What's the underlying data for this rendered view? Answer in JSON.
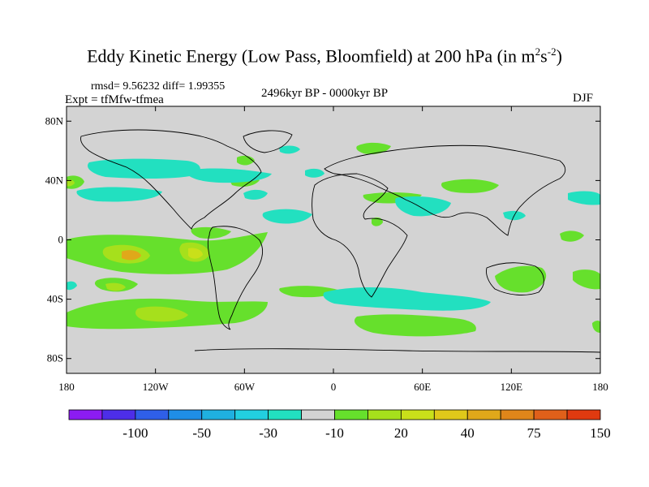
{
  "title": {
    "text": "Eddy Kinetic Energy (Low Pass, Bloomfield) at 200 hPa (in m",
    "sup1": "2",
    "mid": "s",
    "sup2": "-2",
    "end": ")"
  },
  "stats": "rmsd= 9.56232 diff= 1.99355",
  "expt": "Expt = tfMfw-tfmea",
  "period": "2496kyr BP - 0000kyr BP",
  "season": "DJF",
  "map": {
    "background_color": "#d3d3d3",
    "lon_labels": [
      "180",
      "120W",
      "60W",
      "0",
      "60E",
      "120E",
      "180"
    ],
    "lat_labels": [
      "80N",
      "40N",
      "0",
      "40S",
      "80S"
    ]
  },
  "colorbar": {
    "colors": [
      "#8c1cf2",
      "#4d2ee8",
      "#2f5fe8",
      "#1f8ee6",
      "#1fb0e0",
      "#22cfe0",
      "#22e0c0",
      "#d3d3d3",
      "#66e02c",
      "#a6e01c",
      "#c9e01a",
      "#e0c81a",
      "#e0a81a",
      "#e0861a",
      "#e0601a",
      "#e03a10"
    ],
    "labels": [
      "-100",
      "-50",
      "-30",
      "-10",
      "20",
      "40",
      "75",
      "150"
    ]
  }
}
